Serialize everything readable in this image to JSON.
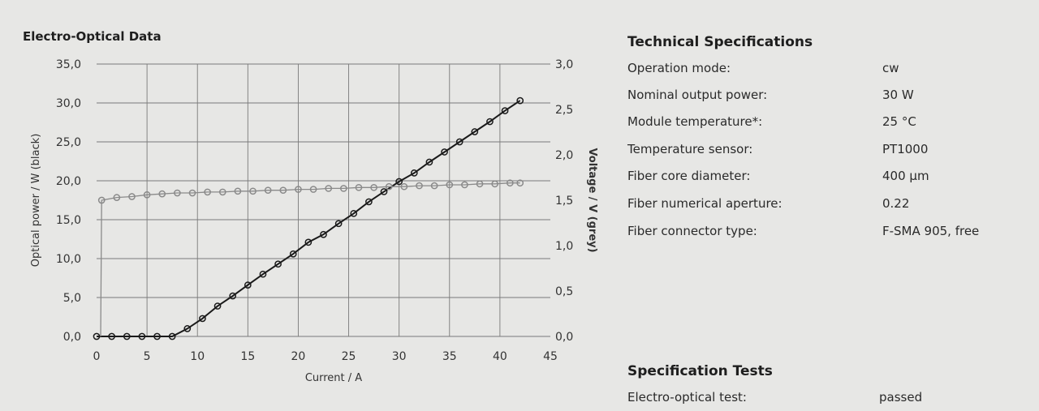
{
  "chart_data": {
    "type": "line",
    "title": "Electro-Optical Data",
    "xlabel": "Current / A",
    "ylabel_left": "Optical power / W (black)",
    "ylabel_right": "Voltage / V (grey)",
    "xlim": [
      0,
      45
    ],
    "ylim_left": [
      0,
      35
    ],
    "ylim_right": [
      0,
      3
    ],
    "x_ticks": [
      "0",
      "5",
      "10",
      "15",
      "20",
      "25",
      "30",
      "35",
      "40",
      "45"
    ],
    "y_ticks_left": [
      "0,0",
      "5,0",
      "10,0",
      "15,0",
      "20,0",
      "25,0",
      "30,0",
      "35,0"
    ],
    "y_ticks_right": [
      "0,0",
      "0,5",
      "1,0",
      "1,5",
      "2,0",
      "2,5",
      "3,0"
    ],
    "grid": true,
    "series": [
      {
        "name": "Optical power",
        "axis": "left",
        "color": "#1a1a1a",
        "x": [
          0,
          1.5,
          3,
          4.5,
          6,
          7.5,
          9,
          10.5,
          12,
          13.5,
          15,
          16.5,
          18,
          19.5,
          21,
          22.5,
          24,
          25.5,
          27,
          28.5,
          30,
          31.5,
          33,
          34.5,
          36,
          37.5,
          39,
          40.5,
          42
        ],
        "values": [
          0,
          0,
          0,
          0,
          0,
          0,
          1.0,
          2.3,
          3.9,
          5.2,
          6.6,
          8.0,
          9.3,
          10.6,
          12.1,
          13.1,
          14.5,
          15.8,
          17.3,
          18.6,
          19.9,
          21.0,
          22.4,
          23.7,
          25.0,
          26.3,
          27.6,
          29.0,
          30.3
        ]
      },
      {
        "name": "Voltage",
        "axis": "right",
        "color": "#8a8a8a",
        "x": [
          0.5,
          2,
          3.5,
          5,
          6.5,
          8,
          9.5,
          11,
          12.5,
          14,
          15.5,
          17,
          18.5,
          20,
          21.5,
          23,
          24.5,
          26,
          27.5,
          29,
          30.5,
          32,
          33.5,
          35,
          36.5,
          38,
          39.5,
          41,
          42
        ],
        "values": [
          1.5,
          1.53,
          1.54,
          1.56,
          1.57,
          1.58,
          1.58,
          1.59,
          1.59,
          1.6,
          1.6,
          1.61,
          1.61,
          1.62,
          1.62,
          1.63,
          1.63,
          1.64,
          1.64,
          1.65,
          1.65,
          1.66,
          1.66,
          1.67,
          1.67,
          1.68,
          1.68,
          1.69,
          1.69
        ]
      }
    ]
  },
  "specs": {
    "title": "Technical Specifications",
    "rows": [
      {
        "label": "Operation mode:",
        "value": "cw"
      },
      {
        "label": "Nominal output power:",
        "value": "30 W"
      },
      {
        "label": "Module temperature*:",
        "value": "25 °C"
      },
      {
        "label": "Temperature sensor:",
        "value": "PT1000"
      },
      {
        "label": "Fiber core diameter:",
        "value": "400 µm"
      },
      {
        "label": "Fiber numerical aperture:",
        "value": "0.22"
      },
      {
        "label": "Fiber connector type:",
        "value": "F-SMA 905, free"
      }
    ]
  },
  "tests": {
    "title": "Specification Tests",
    "rows": [
      {
        "label": "Electro-optical test:",
        "value": "passed"
      }
    ]
  }
}
